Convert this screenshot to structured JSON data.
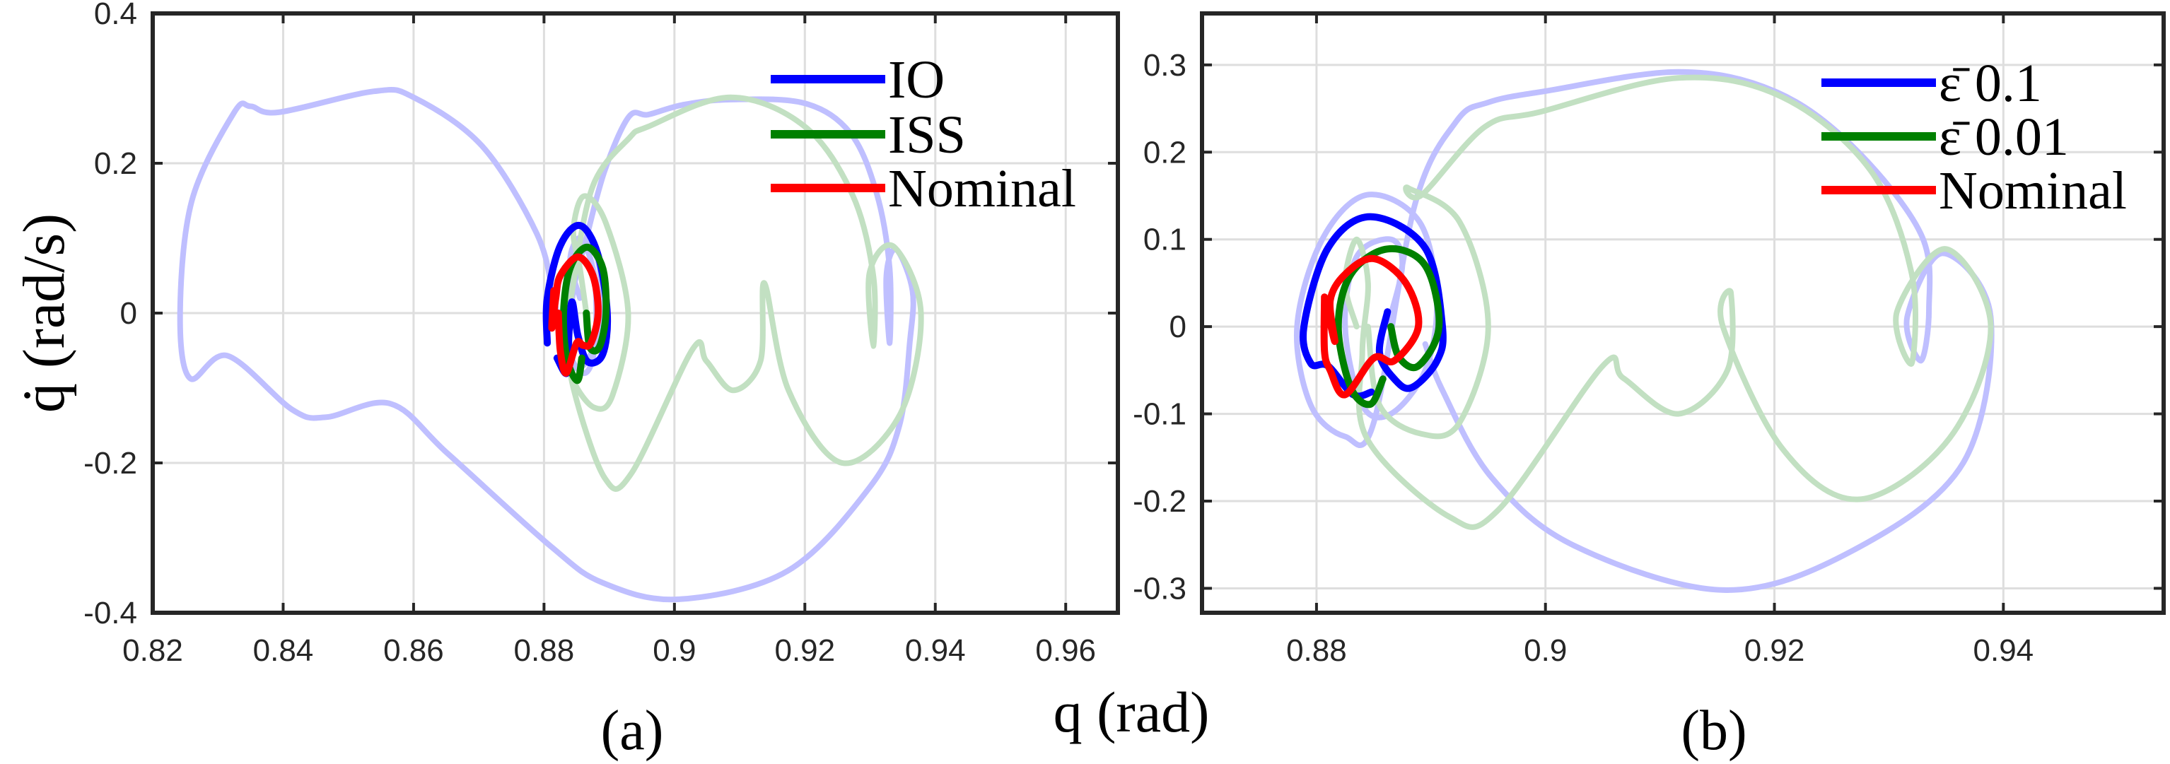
{
  "chart_data": [
    {
      "type": "line",
      "panel_label": "(a)",
      "xlim": [
        0.82,
        0.968
      ],
      "ylim": [
        -0.4,
        0.4
      ],
      "xticks": [
        0.82,
        0.84,
        0.86,
        0.88,
        0.9,
        0.92,
        0.94,
        0.96
      ],
      "xtick_labels": [
        "0.82",
        "0.84",
        "0.86",
        "0.88",
        "0.9",
        "0.92",
        "0.94",
        "0.96"
      ],
      "yticks": [
        -0.4,
        -0.2,
        0,
        0.2,
        0.4
      ],
      "ytick_labels": [
        "-0.4",
        "-0.2",
        "0",
        "0.2",
        "0.4"
      ],
      "grid": true,
      "legend_position": "top-right",
      "series": [
        {
          "color": "#bfbfff",
          "faded": true,
          "points": [
            [
              0.8855,
              0.02
            ],
            [
              0.884,
              0.07
            ],
            [
              0.8855,
              0.1
            ],
            [
              0.8875,
              0.06
            ],
            [
              0.888,
              0
            ],
            [
              0.8875,
              -0.06
            ],
            [
              0.886,
              -0.08
            ],
            [
              0.884,
              -0.05
            ],
            [
              0.8845,
              0.03
            ],
            [
              0.8865,
              0.1
            ],
            [
              0.8893,
              0.19
            ],
            [
              0.893,
              0.262
            ],
            [
              0.896,
              0.265
            ],
            [
              0.9013,
              0.278
            ],
            [
              0.9086,
              0.285
            ],
            [
              0.92,
              0.28
            ],
            [
              0.927,
              0.24
            ],
            [
              0.931,
              0.16
            ],
            [
              0.933,
              0.06
            ],
            [
              0.933,
              -0.04
            ],
            [
              0.9325,
              0.05
            ],
            [
              0.934,
              0.085
            ],
            [
              0.9365,
              0.03
            ],
            [
              0.9361,
              -0.038
            ],
            [
              0.9345,
              -0.15
            ],
            [
              0.9299,
              -0.233
            ],
            [
              0.9174,
              -0.344
            ],
            [
              0.9007,
              -0.382
            ],
            [
              0.889,
              -0.36
            ],
            [
              0.881,
              -0.311
            ],
            [
              0.8653,
              -0.188
            ],
            [
              0.8565,
              -0.121
            ],
            [
              0.8466,
              -0.139
            ],
            [
              0.8414,
              -0.129
            ],
            [
              0.8315,
              -0.057
            ],
            [
              0.8257,
              -0.087
            ],
            [
              0.8242,
              0
            ],
            [
              0.826,
              0.15
            ],
            [
              0.8325,
              0.268
            ],
            [
              0.835,
              0.276
            ],
            [
              0.8393,
              0.268
            ],
            [
              0.8539,
              0.296
            ],
            [
              0.86,
              0.288
            ],
            [
              0.8705,
              0.223
            ],
            [
              0.8789,
              0.106
            ],
            [
              0.8815,
              0.02
            ],
            [
              0.8835,
              -0.06
            ],
            [
              0.886,
              -0.07
            ],
            [
              0.8885,
              -0.02
            ],
            [
              0.8885,
              0.06
            ],
            [
              0.8865,
              0.095
            ],
            [
              0.8845,
              0.08
            ],
            [
              0.8835,
              0.02
            ]
          ]
        },
        {
          "color": "#c2e0c2",
          "faded": true,
          "points": [
            [
              0.8865,
              0
            ],
            [
              0.8855,
              0.06
            ],
            [
              0.8845,
              0.11
            ],
            [
              0.8861,
              0.156
            ],
            [
              0.8895,
              0.12
            ],
            [
              0.8929,
              0
            ],
            [
              0.8905,
              -0.11
            ],
            [
              0.8877,
              -0.126
            ],
            [
              0.8845,
              -0.09
            ],
            [
              0.8835,
              -0.04
            ],
            [
              0.8845,
              0.04
            ],
            [
              0.8875,
              0.17
            ],
            [
              0.893,
              0.233
            ],
            [
              0.896,
              0.249
            ],
            [
              0.9086,
              0.288
            ],
            [
              0.92,
              0.249
            ],
            [
              0.9273,
              0.158
            ],
            [
              0.9305,
              0.05
            ],
            [
              0.9305,
              -0.044
            ],
            [
              0.9299,
              0.053
            ],
            [
              0.9336,
              0.089
            ],
            [
              0.9378,
              0
            ],
            [
              0.9346,
              -0.135
            ],
            [
              0.9257,
              -0.2
            ],
            [
              0.9175,
              -0.103
            ],
            [
              0.9138,
              0.04
            ],
            [
              0.9132,
              -0.064
            ],
            [
              0.909,
              -0.103
            ],
            [
              0.9049,
              -0.064
            ],
            [
              0.9028,
              -0.048
            ],
            [
              0.8934,
              -0.214
            ],
            [
              0.8893,
              -0.22
            ],
            [
              0.8845,
              -0.1
            ],
            [
              0.8835,
              -0.02
            ]
          ]
        },
        {
          "name": "IO",
          "color": "#0000ff",
          "points": [
            [
              0.8805,
              -0.04
            ],
            [
              0.8805,
              0.02
            ],
            [
              0.8825,
              0.09
            ],
            [
              0.8855,
              0.117
            ],
            [
              0.8882,
              0.08
            ],
            [
              0.8897,
              0
            ],
            [
              0.889,
              -0.055
            ],
            [
              0.8867,
              -0.065
            ],
            [
              0.8852,
              -0.03
            ],
            [
              0.8843,
              0.015
            ],
            [
              0.8838,
              -0.03
            ],
            [
              0.8835,
              -0.08
            ],
            [
              0.882,
              -0.06
            ]
          ]
        },
        {
          "name": "ISS",
          "color": "#008000",
          "points": [
            [
              0.8865,
              0
            ],
            [
              0.887,
              -0.045
            ],
            [
              0.8885,
              -0.045
            ],
            [
              0.8895,
              0
            ],
            [
              0.889,
              0.06
            ],
            [
              0.8866,
              0.088
            ],
            [
              0.884,
              0.06
            ],
            [
              0.883,
              0
            ],
            [
              0.8835,
              -0.06
            ],
            [
              0.8851,
              -0.09
            ],
            [
              0.8858,
              -0.06
            ]
          ]
        },
        {
          "name": "Nominal",
          "color": "#ff0000",
          "points": [
            [
              0.8815,
              0.03
            ],
            [
              0.8812,
              -0.02
            ],
            [
              0.8818,
              0.02
            ],
            [
              0.8825,
              0.05
            ],
            [
              0.8852,
              0.075
            ],
            [
              0.8875,
              0.05
            ],
            [
              0.8883,
              0
            ],
            [
              0.8872,
              -0.04
            ],
            [
              0.886,
              -0.043
            ],
            [
              0.885,
              -0.04
            ],
            [
              0.8834,
              -0.08
            ],
            [
              0.8825,
              -0.05
            ],
            [
              0.8822,
              0
            ]
          ]
        }
      ]
    },
    {
      "type": "line",
      "panel_label": "(b)",
      "xlim": [
        0.87,
        0.954
      ],
      "ylim": [
        -0.328,
        0.359
      ],
      "xticks": [
        0.88,
        0.9,
        0.92,
        0.94
      ],
      "xtick_labels": [
        "0.88",
        "0.9",
        "0.92",
        "0.94"
      ],
      "yticks": [
        -0.3,
        -0.2,
        -0.1,
        0,
        0.1,
        0.2,
        0.3
      ],
      "ytick_labels": [
        "-0.3",
        "-0.2",
        "-0.1",
        "0",
        "0.1",
        "0.2",
        "0.3"
      ],
      "grid": true,
      "legend_position": "top-right",
      "series": [
        {
          "color": "#bfbfff",
          "faded": true,
          "points": [
            [
              0.8862,
              0.0
            ],
            [
              0.8875,
              0.07
            ],
            [
              0.8865,
              0.1
            ],
            [
              0.8835,
              0.08
            ],
            [
              0.8825,
              0
            ],
            [
              0.884,
              -0.09
            ],
            [
              0.8865,
              -0.1
            ],
            [
              0.8895,
              -0.05
            ],
            [
              0.8905,
              0.03
            ],
            [
              0.889,
              0.12
            ],
            [
              0.8844,
              0.151
            ],
            [
              0.8805,
              0.1
            ],
            [
              0.8783,
              0
            ],
            [
              0.8795,
              -0.09
            ],
            [
              0.8825,
              -0.126
            ],
            [
              0.885,
              -0.11
            ],
            [
              0.8886,
              0.14
            ],
            [
              0.8922,
              0.235
            ],
            [
              0.895,
              0.257
            ],
            [
              0.9,
              0.27
            ],
            [
              0.9116,
              0.292
            ],
            [
              0.92,
              0.27
            ],
            [
              0.9268,
              0.207
            ],
            [
              0.9328,
              0.106
            ],
            [
              0.9335,
              0.02
            ],
            [
              0.9328,
              -0.039
            ],
            [
              0.9316,
              0.011
            ],
            [
              0.9347,
              0.084
            ],
            [
              0.9389,
              0.011
            ],
            [
              0.9365,
              -0.156
            ],
            [
              0.9268,
              -0.257
            ],
            [
              0.9156,
              -0.302
            ],
            [
              0.9025,
              -0.251
            ],
            [
              0.8953,
              -0.173
            ],
            [
              0.891,
              -0.073
            ],
            [
              0.8895,
              -0.02
            ]
          ]
        },
        {
          "color": "#c2e0c2",
          "faded": true,
          "points": [
            [
              0.8835,
              0
            ],
            [
              0.8825,
              0.05
            ],
            [
              0.8835,
              0.1
            ],
            [
              0.8845,
              0.05
            ],
            [
              0.884,
              -0.03
            ],
            [
              0.8844,
              -0.128
            ],
            [
              0.8916,
              -0.218
            ],
            [
              0.8959,
              -0.21
            ],
            [
              0.905,
              -0.045
            ],
            [
              0.9068,
              -0.059
            ],
            [
              0.9116,
              -0.1
            ],
            [
              0.9159,
              -0.05
            ],
            [
              0.9162,
              0.039
            ],
            [
              0.9155,
              0.0
            ],
            [
              0.9207,
              -0.14
            ],
            [
              0.9274,
              -0.198
            ],
            [
              0.9353,
              -0.128
            ],
            [
              0.9389,
              0
            ],
            [
              0.935,
              0.089
            ],
            [
              0.9307,
              0.017
            ],
            [
              0.932,
              -0.042
            ],
            [
              0.932,
              0.06
            ],
            [
              0.9284,
              0.179
            ],
            [
              0.9207,
              0.263
            ],
            [
              0.9116,
              0.285
            ],
            [
              0.8995,
              0.246
            ],
            [
              0.8947,
              0.229
            ],
            [
              0.8892,
              0.151
            ],
            [
              0.888,
              0.159
            ],
            [
              0.8925,
              0.12
            ],
            [
              0.895,
              0
            ],
            [
              0.8925,
              -0.11
            ],
            [
              0.8892,
              -0.123
            ],
            [
              0.8855,
              -0.09
            ],
            [
              0.8845,
              0
            ]
          ]
        },
        {
          "name": "ε̄ 0.1",
          "color": "#0000ff",
          "points": [
            [
              0.8862,
              0.017
            ],
            [
              0.8855,
              -0.03
            ],
            [
              0.8868,
              -0.06
            ],
            [
              0.8883,
              -0.07
            ],
            [
              0.8905,
              -0.04
            ],
            [
              0.891,
              0
            ],
            [
              0.8895,
              0.09
            ],
            [
              0.8847,
              0.126
            ],
            [
              0.881,
              0.09
            ],
            [
              0.8789,
              0
            ],
            [
              0.8795,
              -0.042
            ],
            [
              0.881,
              -0.045
            ],
            [
              0.8832,
              -0.078
            ],
            [
              0.8848,
              -0.075
            ]
          ]
        },
        {
          "name": "ε̄ 0.01",
          "color": "#008000",
          "points": [
            [
              0.8865,
              0
            ],
            [
              0.8872,
              -0.035
            ],
            [
              0.8889,
              -0.045
            ],
            [
              0.8907,
              0
            ],
            [
              0.8895,
              0.07
            ],
            [
              0.8862,
              0.089
            ],
            [
              0.883,
              0.06
            ],
            [
              0.8819,
              0
            ],
            [
              0.883,
              -0.07
            ],
            [
              0.8847,
              -0.089
            ],
            [
              0.8858,
              -0.06
            ]
          ]
        },
        {
          "name": "Nominal",
          "color": "#ff0000",
          "points": [
            [
              0.8807,
              0.034
            ],
            [
              0.8816,
              -0.017
            ],
            [
              0.8812,
              0.03
            ],
            [
              0.8825,
              0.06
            ],
            [
              0.885,
              0.078
            ],
            [
              0.8878,
              0.05
            ],
            [
              0.8889,
              0
            ],
            [
              0.8868,
              -0.039
            ],
            [
              0.885,
              -0.036
            ],
            [
              0.8825,
              -0.078
            ],
            [
              0.8812,
              -0.05
            ],
            [
              0.8807,
              -0.028
            ],
            [
              0.8807,
              0.034
            ]
          ]
        }
      ]
    }
  ],
  "labels": {
    "ylabel": "q̇ (rad/s)",
    "xlabel": "q (rad)"
  }
}
